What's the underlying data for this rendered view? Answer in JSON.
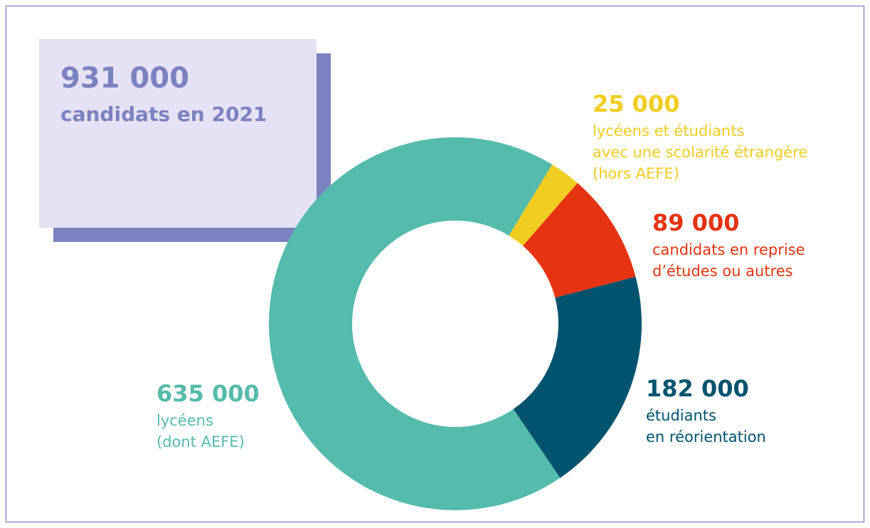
{
  "chart_data": {
    "type": "donut",
    "title": "931 000",
    "subtitle": "candidats en 2021",
    "categories": [
      "lycéens et étudiants\navec une scolarité étrangère\n(hors AEFE)",
      "candidats en reprise\nd’études ou autres",
      "étudiants\nen réorientation",
      "lycéens\n(dont AEFE)"
    ],
    "values": [
      25000,
      89000,
      182000,
      635000
    ],
    "value_labels": [
      "25 000",
      "89 000",
      "182 000",
      "635 000"
    ],
    "colors": [
      "#f0cd21",
      "#e63312",
      "#00536f",
      "#55bbac"
    ]
  }
}
